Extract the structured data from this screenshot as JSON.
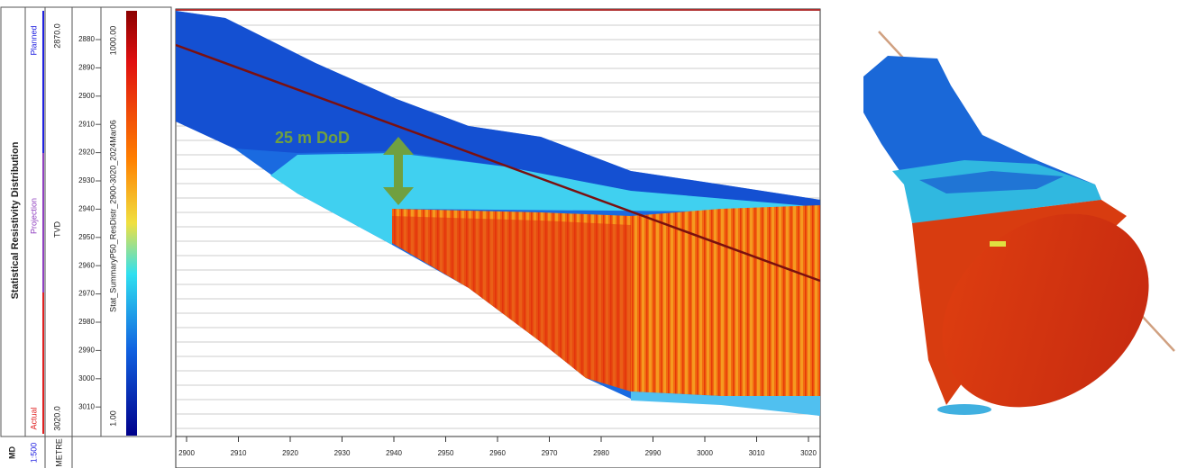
{
  "left_panel": {
    "track_title": "Statistical Resistivity Distribution",
    "legend": [
      "Planned",
      "Projection",
      "Actual"
    ],
    "md_start": "2870.0",
    "md_end": "3020.0",
    "tvd_label": "TVD",
    "curve_label": "Stat_SummaryP50_ResDistr_2900-3020_2024Mar06",
    "scale_max": "1000.00",
    "scale_min": "1.00",
    "depth_ticks": [
      "2880",
      "2890",
      "2900",
      "2910",
      "2920",
      "2930",
      "2940",
      "2950",
      "2960",
      "2970",
      "2980",
      "2990",
      "3000",
      "3010"
    ],
    "footer": [
      "MD",
      "1:500",
      "METRE"
    ]
  },
  "plot": {
    "annotation": "25 m DoD",
    "x_ticks": [
      "2900",
      "2910",
      "2920",
      "2930",
      "2940",
      "2950",
      "2960",
      "2970",
      "2980",
      "2990",
      "3000",
      "3010",
      "3020"
    ]
  }
}
